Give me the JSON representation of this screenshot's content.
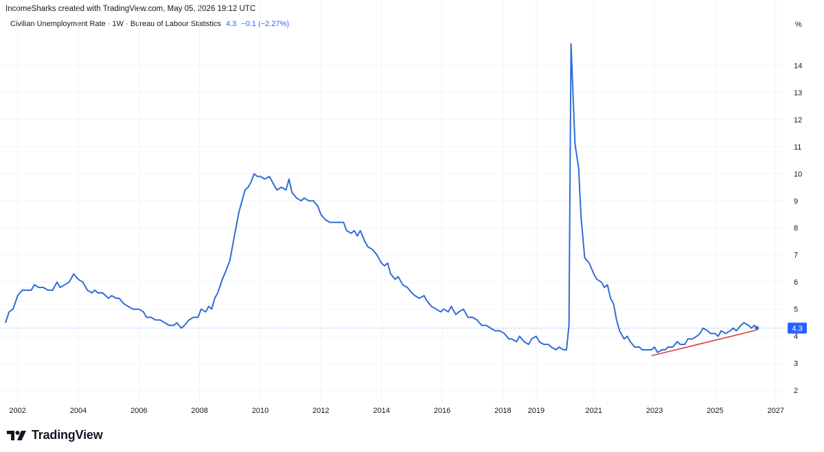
{
  "header": {
    "attribution": "IncomeSharks created with TradingView.com, May 05, 2026 19:12 UTC",
    "series_title": "Civilian Unemployment Rate · 1W · Bureau of Labour Statistics",
    "last_value": "4.3",
    "change": "−0.1 (−2.27%)"
  },
  "footer": {
    "brand": "TradingView"
  },
  "colors": {
    "line": "#2e6bd6",
    "trend": "#e23b3b",
    "badge": "#2962ff",
    "grid": "#f0f3fa",
    "text": "#131722"
  },
  "chart_data": {
    "type": "line",
    "title": "Civilian Unemployment Rate · 1W · Bureau of Labour Statistics",
    "unit_label": "%",
    "xlim": [
      2001.6,
      2027.3
    ],
    "ylim": [
      1.6,
      15.4
    ],
    "y_ticks": [
      2,
      3,
      4,
      5,
      6,
      7,
      8,
      9,
      10,
      11,
      12,
      13,
      14
    ],
    "x_ticks": [
      {
        "label": "2002",
        "x": 2002.0
      },
      {
        "label": "2004",
        "x": 2004.0
      },
      {
        "label": "2006",
        "x": 2006.0
      },
      {
        "label": "2008",
        "x": 2008.0
      },
      {
        "label": "2010",
        "x": 2010.0
      },
      {
        "label": "2012",
        "x": 2012.0
      },
      {
        "label": "2014",
        "x": 2014.0
      },
      {
        "label": "2016",
        "x": 2016.0
      },
      {
        "label": "2018",
        "x": 2018.0
      },
      {
        "label": "2019",
        "x": 2019.1
      },
      {
        "label": "2021",
        "x": 2021.0
      },
      {
        "label": "2023",
        "x": 2023.0
      },
      {
        "label": "2025",
        "x": 2025.0
      },
      {
        "label": "2027",
        "x": 2027.0
      }
    ],
    "last_value_line": 4.3,
    "last_value_label": "4.3",
    "grid": true,
    "series": [
      {
        "values": [
          [
            2001.6,
            4.5
          ],
          [
            2001.72,
            4.9
          ],
          [
            2001.85,
            5.0
          ],
          [
            2002.0,
            5.5
          ],
          [
            2002.15,
            5.7
          ],
          [
            2002.3,
            5.7
          ],
          [
            2002.45,
            5.7
          ],
          [
            2002.55,
            5.9
          ],
          [
            2002.7,
            5.8
          ],
          [
            2002.85,
            5.8
          ],
          [
            2003.0,
            5.7
          ],
          [
            2003.15,
            5.7
          ],
          [
            2003.3,
            6.0
          ],
          [
            2003.4,
            5.8
          ],
          [
            2003.55,
            5.9
          ],
          [
            2003.7,
            6.0
          ],
          [
            2003.85,
            6.3
          ],
          [
            2004.0,
            6.1
          ],
          [
            2004.15,
            6.0
          ],
          [
            2004.3,
            5.7
          ],
          [
            2004.45,
            5.6
          ],
          [
            2004.55,
            5.7
          ],
          [
            2004.65,
            5.6
          ],
          [
            2004.8,
            5.6
          ],
          [
            2005.0,
            5.4
          ],
          [
            2005.1,
            5.5
          ],
          [
            2005.25,
            5.4
          ],
          [
            2005.35,
            5.4
          ],
          [
            2005.5,
            5.2
          ],
          [
            2005.65,
            5.1
          ],
          [
            2005.8,
            5.0
          ],
          [
            2006.0,
            5.0
          ],
          [
            2006.15,
            4.9
          ],
          [
            2006.25,
            4.7
          ],
          [
            2006.4,
            4.7
          ],
          [
            2006.55,
            4.6
          ],
          [
            2006.7,
            4.6
          ],
          [
            2006.85,
            4.5
          ],
          [
            2007.0,
            4.4
          ],
          [
            2007.15,
            4.4
          ],
          [
            2007.25,
            4.5
          ],
          [
            2007.4,
            4.3
          ],
          [
            2007.5,
            4.4
          ],
          [
            2007.65,
            4.6
          ],
          [
            2007.8,
            4.7
          ],
          [
            2007.95,
            4.7
          ],
          [
            2008.05,
            5.0
          ],
          [
            2008.2,
            4.9
          ],
          [
            2008.3,
            5.1
          ],
          [
            2008.4,
            5.0
          ],
          [
            2008.5,
            5.4
          ],
          [
            2008.6,
            5.6
          ],
          [
            2008.75,
            6.1
          ],
          [
            2008.9,
            6.5
          ],
          [
            2009.0,
            6.8
          ],
          [
            2009.1,
            7.4
          ],
          [
            2009.2,
            8.0
          ],
          [
            2009.3,
            8.6
          ],
          [
            2009.4,
            9.0
          ],
          [
            2009.5,
            9.4
          ],
          [
            2009.6,
            9.5
          ],
          [
            2009.7,
            9.7
          ],
          [
            2009.8,
            10.0
          ],
          [
            2009.9,
            9.9
          ],
          [
            2010.0,
            9.9
          ],
          [
            2010.15,
            9.8
          ],
          [
            2010.3,
            9.9
          ],
          [
            2010.45,
            9.6
          ],
          [
            2010.55,
            9.4
          ],
          [
            2010.7,
            9.5
          ],
          [
            2010.85,
            9.4
          ],
          [
            2010.95,
            9.8
          ],
          [
            2011.05,
            9.3
          ],
          [
            2011.2,
            9.1
          ],
          [
            2011.35,
            9.0
          ],
          [
            2011.45,
            9.1
          ],
          [
            2011.6,
            9.0
          ],
          [
            2011.75,
            9.0
          ],
          [
            2011.9,
            8.8
          ],
          [
            2012.0,
            8.5
          ],
          [
            2012.15,
            8.3
          ],
          [
            2012.3,
            8.2
          ],
          [
            2012.45,
            8.2
          ],
          [
            2012.6,
            8.2
          ],
          [
            2012.75,
            8.2
          ],
          [
            2012.85,
            7.9
          ],
          [
            2013.0,
            7.8
          ],
          [
            2013.1,
            7.9
          ],
          [
            2013.2,
            7.7
          ],
          [
            2013.3,
            7.9
          ],
          [
            2013.45,
            7.5
          ],
          [
            2013.55,
            7.3
          ],
          [
            2013.7,
            7.2
          ],
          [
            2013.85,
            7.0
          ],
          [
            2014.0,
            6.7
          ],
          [
            2014.1,
            6.6
          ],
          [
            2014.2,
            6.7
          ],
          [
            2014.3,
            6.3
          ],
          [
            2014.45,
            6.1
          ],
          [
            2014.55,
            6.2
          ],
          [
            2014.7,
            5.9
          ],
          [
            2014.85,
            5.8
          ],
          [
            2015.0,
            5.6
          ],
          [
            2015.1,
            5.5
          ],
          [
            2015.25,
            5.4
          ],
          [
            2015.4,
            5.5
          ],
          [
            2015.5,
            5.3
          ],
          [
            2015.65,
            5.1
          ],
          [
            2015.8,
            5.0
          ],
          [
            2015.95,
            4.9
          ],
          [
            2016.05,
            5.0
          ],
          [
            2016.2,
            4.9
          ],
          [
            2016.3,
            5.1
          ],
          [
            2016.45,
            4.8
          ],
          [
            2016.55,
            4.9
          ],
          [
            2016.7,
            5.0
          ],
          [
            2016.85,
            4.7
          ],
          [
            2017.0,
            4.7
          ],
          [
            2017.15,
            4.6
          ],
          [
            2017.3,
            4.4
          ],
          [
            2017.45,
            4.4
          ],
          [
            2017.6,
            4.3
          ],
          [
            2017.75,
            4.2
          ],
          [
            2017.9,
            4.2
          ],
          [
            2018.05,
            4.1
          ],
          [
            2018.2,
            3.9
          ],
          [
            2018.3,
            3.9
          ],
          [
            2018.45,
            3.8
          ],
          [
            2018.55,
            4.0
          ],
          [
            2018.7,
            3.8
          ],
          [
            2018.85,
            3.7
          ],
          [
            2018.95,
            3.9
          ],
          [
            2019.1,
            4.0
          ],
          [
            2019.2,
            3.8
          ],
          [
            2019.35,
            3.7
          ],
          [
            2019.5,
            3.7
          ],
          [
            2019.6,
            3.6
          ],
          [
            2019.75,
            3.5
          ],
          [
            2019.85,
            3.6
          ],
          [
            2020.0,
            3.5
          ],
          [
            2020.1,
            3.5
          ],
          [
            2020.18,
            4.4
          ],
          [
            2020.25,
            14.8
          ],
          [
            2020.3,
            13.3
          ],
          [
            2020.38,
            11.1
          ],
          [
            2020.5,
            10.2
          ],
          [
            2020.58,
            8.4
          ],
          [
            2020.7,
            6.9
          ],
          [
            2020.85,
            6.7
          ],
          [
            2021.0,
            6.3
          ],
          [
            2021.1,
            6.1
          ],
          [
            2021.25,
            6.0
          ],
          [
            2021.35,
            5.8
          ],
          [
            2021.45,
            5.9
          ],
          [
            2021.55,
            5.4
          ],
          [
            2021.65,
            5.2
          ],
          [
            2021.75,
            4.6
          ],
          [
            2021.85,
            4.2
          ],
          [
            2022.0,
            3.9
          ],
          [
            2022.1,
            4.0
          ],
          [
            2022.2,
            3.8
          ],
          [
            2022.35,
            3.6
          ],
          [
            2022.5,
            3.6
          ],
          [
            2022.6,
            3.5
          ],
          [
            2022.75,
            3.5
          ],
          [
            2022.9,
            3.5
          ],
          [
            2023.0,
            3.6
          ],
          [
            2023.1,
            3.4
          ],
          [
            2023.25,
            3.5
          ],
          [
            2023.35,
            3.5
          ],
          [
            2023.45,
            3.6
          ],
          [
            2023.6,
            3.6
          ],
          [
            2023.75,
            3.8
          ],
          [
            2023.85,
            3.7
          ],
          [
            2024.0,
            3.7
          ],
          [
            2024.1,
            3.9
          ],
          [
            2024.25,
            3.9
          ],
          [
            2024.4,
            4.0
          ],
          [
            2024.5,
            4.1
          ],
          [
            2024.6,
            4.3
          ],
          [
            2024.75,
            4.2
          ],
          [
            2024.85,
            4.1
          ],
          [
            2025.0,
            4.1
          ],
          [
            2025.1,
            4.0
          ],
          [
            2025.2,
            4.2
          ],
          [
            2025.35,
            4.1
          ],
          [
            2025.5,
            4.2
          ],
          [
            2025.6,
            4.3
          ],
          [
            2025.7,
            4.2
          ],
          [
            2025.85,
            4.4
          ],
          [
            2025.95,
            4.5
          ],
          [
            2026.1,
            4.4
          ],
          [
            2026.2,
            4.3
          ],
          [
            2026.3,
            4.4
          ],
          [
            2026.38,
            4.3
          ]
        ]
      }
    ],
    "trendline": [
      [
        2022.9,
        3.28
      ],
      [
        2026.35,
        4.22
      ]
    ]
  }
}
